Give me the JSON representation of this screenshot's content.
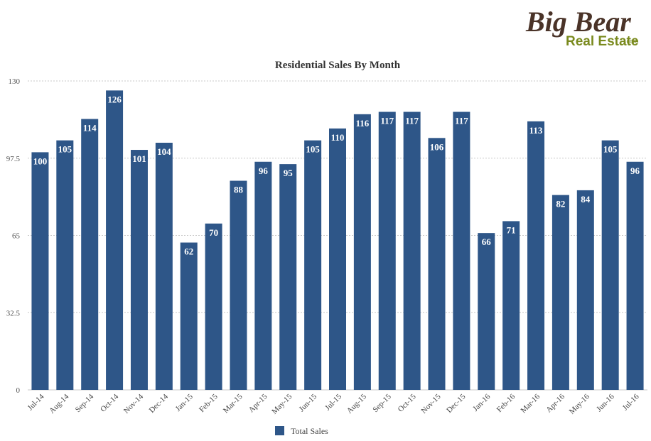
{
  "logo": {
    "line1": "Big Bear",
    "line2": "Real Estate",
    "suffix": ".com"
  },
  "colors": {
    "bar": "#2e5688",
    "grid": "#c8c8c8",
    "logo_brown": "#4a3328",
    "logo_green": "#7a8a1e"
  },
  "chart_data": {
    "type": "bar",
    "title": "Residential Sales By Month",
    "xlabel": "",
    "ylabel": "",
    "ylim": [
      0,
      130
    ],
    "yticks": [
      "0",
      "32.5",
      "65",
      "97.5",
      "130"
    ],
    "grid": true,
    "legend_position": "bottom",
    "categories": [
      "Jul-14",
      "Aug-14",
      "Sep-14",
      "Oct-14",
      "Nov-14",
      "Dec-14",
      "Jan-15",
      "Feb-15",
      "Mar-15",
      "Apr-15",
      "May-15",
      "Jun-15",
      "Jul-15",
      "Aug-15",
      "Sep-15",
      "Oct-15",
      "Nov-15",
      "Dec-15",
      "Jan-16",
      "Feb-16",
      "Mar-16",
      "Apr-16",
      "May-16",
      "Jun-16",
      "Jul-16"
    ],
    "series": [
      {
        "name": "Total Sales",
        "values": [
          100,
          105,
          114,
          126,
          101,
          104,
          62,
          70,
          88,
          96,
          95,
          105,
          110,
          116,
          117,
          117,
          106,
          117,
          66,
          71,
          113,
          82,
          84,
          105,
          96
        ]
      }
    ]
  }
}
